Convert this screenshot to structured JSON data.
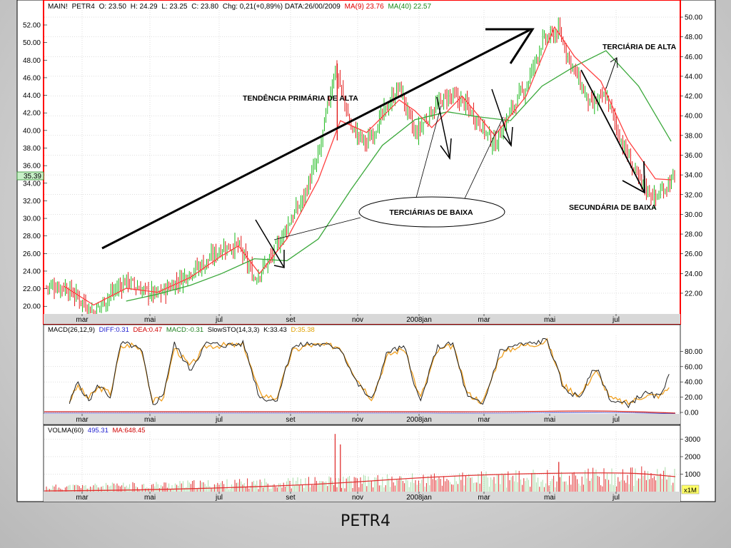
{
  "caption": "PETR4",
  "price_value_box": "35.39",
  "volume_unit_box": "x1M",
  "chart_data": [
    {
      "type": "candlestick",
      "panel": "main",
      "header": {
        "main": "MAIN!",
        "symbol": "PETR4",
        "open": "O: 23.50",
        "high": "H: 24.29",
        "low": "L: 23.25",
        "close": "C: 23.80",
        "change": "Chg: 0,21(+0,89%)",
        "date": "DATA:26/00/2009",
        "ma9": "MA(9) 23.76",
        "ma40": "MA(40) 22.57"
      },
      "x_ticks": [
        "mar",
        "mai",
        "jul",
        "set",
        "nov",
        "2008jan",
        "mar",
        "mai",
        "jul"
      ],
      "left_ticks": [
        "52.00",
        "50.00",
        "48.00",
        "46.00",
        "44.00",
        "42.00",
        "40.00",
        "38.00",
        "36.00",
        "34.00",
        "32.00",
        "30.00",
        "28.00",
        "26.00",
        "24.00",
        "22.00",
        "20.00"
      ],
      "right_ticks": [
        "50.00",
        "48.00",
        "46.00",
        "44.00",
        "42.00",
        "40.00",
        "38.00",
        "36.00",
        "34.00",
        "32.00",
        "30.00",
        "28.00",
        "26.00",
        "24.00",
        "22.00"
      ],
      "annotations": {
        "primary_trend": "TENDÊNCIA PRIMÁRIA DE ALTA",
        "tertiary_down": "TERCIÁRIAS DE BAIXA",
        "tertiary_up": "TERCIÁRIA DE ALTA",
        "secondary_down": "SECUNDÁRIA DE BAIXA"
      },
      "colors": {
        "up": "#00b000",
        "down": "#e00000",
        "ma9": "#ff4040",
        "ma40": "#3aa83a",
        "frame": "#ff0000"
      },
      "close_path": [
        [
          "2007-02-20",
          22.7
        ],
        [
          "2007-03-05",
          21.6
        ],
        [
          "2007-03-20",
          20.1
        ],
        [
          "2007-04-05",
          21.9
        ],
        [
          "2007-04-20",
          23.3
        ],
        [
          "2007-05-05",
          22.3
        ],
        [
          "2007-05-20",
          21.8
        ],
        [
          "2007-06-05",
          23.0
        ],
        [
          "2007-06-20",
          24.2
        ],
        [
          "2007-07-05",
          25.1
        ],
        [
          "2007-07-20",
          26.6
        ],
        [
          "2007-08-05",
          26.8
        ],
        [
          "2007-08-20",
          23.5
        ],
        [
          "2007-09-05",
          25.6
        ],
        [
          "2007-09-20",
          28.8
        ],
        [
          "2007-10-05",
          31.5
        ],
        [
          "2007-10-20",
          35.8
        ],
        [
          "2007-11-05",
          45.0
        ],
        [
          "2007-11-20",
          38.8
        ],
        [
          "2007-12-05",
          37.2
        ],
        [
          "2007-12-20",
          40.0
        ],
        [
          "2008-01-05",
          43.0
        ],
        [
          "2008-01-20",
          38.0
        ],
        [
          "2008-02-05",
          40.5
        ],
        [
          "2008-02-20",
          42.0
        ],
        [
          "2008-03-05",
          41.5
        ],
        [
          "2008-03-20",
          39.5
        ],
        [
          "2008-04-05",
          37.0
        ],
        [
          "2008-04-20",
          40.5
        ],
        [
          "2008-05-05",
          43.0
        ],
        [
          "2008-05-20",
          47.5
        ],
        [
          "2008-06-05",
          48.5
        ],
        [
          "2008-06-20",
          44.5
        ],
        [
          "2008-07-05",
          41.0
        ],
        [
          "2008-07-20",
          42.0
        ],
        [
          "2008-08-05",
          37.0
        ],
        [
          "2008-08-20",
          33.5
        ],
        [
          "2008-09-05",
          31.6
        ],
        [
          "2008-09-20",
          33.5
        ]
      ],
      "ma9_path": [
        [
          "2007-02-20",
          22.7
        ],
        [
          "2007-03-20",
          20.8
        ],
        [
          "2007-04-20",
          22.5
        ],
        [
          "2007-05-20",
          22.1
        ],
        [
          "2007-06-20",
          23.6
        ],
        [
          "2007-07-20",
          25.8
        ],
        [
          "2007-08-05",
          26.8
        ],
        [
          "2007-08-25",
          24.0
        ],
        [
          "2007-09-20",
          27.5
        ],
        [
          "2007-10-20",
          33.5
        ],
        [
          "2007-11-10",
          39.5
        ],
        [
          "2007-12-05",
          38.3
        ],
        [
          "2008-01-05",
          41.6
        ],
        [
          "2008-01-20",
          40.5
        ],
        [
          "2008-02-05",
          38.8
        ],
        [
          "2008-03-05",
          42.0
        ],
        [
          "2008-04-05",
          38.0
        ],
        [
          "2008-05-05",
          42.0
        ],
        [
          "2008-06-01",
          49.0
        ],
        [
          "2008-06-20",
          46.0
        ],
        [
          "2008-07-15",
          43.5
        ],
        [
          "2008-08-10",
          37.5
        ],
        [
          "2008-09-05",
          33.6
        ],
        [
          "2008-09-20",
          33.5
        ]
      ],
      "ma40_path": [
        [
          "2007-04-20",
          21.2
        ],
        [
          "2007-05-20",
          21.9
        ],
        [
          "2007-06-20",
          22.8
        ],
        [
          "2007-07-20",
          24.0
        ],
        [
          "2007-08-20",
          25.5
        ],
        [
          "2007-09-20",
          25.3
        ],
        [
          "2007-10-20",
          27.5
        ],
        [
          "2007-11-20",
          32.5
        ],
        [
          "2007-12-20",
          37.0
        ],
        [
          "2008-01-20",
          39.6
        ],
        [
          "2008-02-20",
          40.4
        ],
        [
          "2008-03-20",
          39.9
        ],
        [
          "2008-04-20",
          39.5
        ],
        [
          "2008-05-20",
          43.0
        ],
        [
          "2008-06-20",
          45.0
        ],
        [
          "2008-07-20",
          46.6
        ],
        [
          "2008-08-20",
          43.0
        ],
        [
          "2008-09-20",
          37.4
        ]
      ]
    },
    {
      "type": "line",
      "panel": "indicators",
      "header": {
        "macd": "MACD(26,12,9)",
        "diff": "DIFF:0.31",
        "dea": "DEA:0.47",
        "macd_val": "MACD:-0.31",
        "slowsto": "SlowSTO(14,3,3)",
        "k": "K:33.43",
        "d": "D:35.38"
      },
      "y_ticks": [
        "80.00",
        "60.00",
        "40.00",
        "20.00",
        "0.00"
      ],
      "ylim": [
        0,
        100
      ],
      "slowsto_k": [
        [
          "2007-02-25",
          12
        ],
        [
          "2007-03-05",
          40
        ],
        [
          "2007-03-15",
          15
        ],
        [
          "2007-03-25",
          36
        ],
        [
          "2007-04-05",
          20
        ],
        [
          "2007-04-15",
          90
        ],
        [
          "2007-04-25",
          88
        ],
        [
          "2007-05-05",
          80
        ],
        [
          "2007-05-15",
          10
        ],
        [
          "2007-05-25",
          22
        ],
        [
          "2007-06-05",
          90
        ],
        [
          "2007-06-20",
          55
        ],
        [
          "2007-07-05",
          90
        ],
        [
          "2007-07-25",
          88
        ],
        [
          "2007-08-10",
          90
        ],
        [
          "2007-08-25",
          20
        ],
        [
          "2007-09-10",
          15
        ],
        [
          "2007-09-25",
          85
        ],
        [
          "2007-10-10",
          90
        ],
        [
          "2007-10-25",
          88
        ],
        [
          "2007-11-10",
          85
        ],
        [
          "2007-11-25",
          40
        ],
        [
          "2007-12-10",
          15
        ],
        [
          "2007-12-25",
          80
        ],
        [
          "2008-01-10",
          85
        ],
        [
          "2008-01-25",
          12
        ],
        [
          "2008-02-10",
          85
        ],
        [
          "2008-02-25",
          90
        ],
        [
          "2008-03-10",
          20
        ],
        [
          "2008-03-25",
          10
        ],
        [
          "2008-04-10",
          80
        ],
        [
          "2008-04-25",
          88
        ],
        [
          "2008-05-10",
          90
        ],
        [
          "2008-05-25",
          95
        ],
        [
          "2008-06-10",
          30
        ],
        [
          "2008-06-25",
          20
        ],
        [
          "2008-07-10",
          60
        ],
        [
          "2008-07-25",
          15
        ],
        [
          "2008-08-10",
          10
        ],
        [
          "2008-08-25",
          25
        ],
        [
          "2008-09-10",
          20
        ],
        [
          "2008-09-20",
          62
        ]
      ],
      "slowsto_d": [
        [
          "2007-02-25",
          15
        ],
        [
          "2007-03-05",
          35
        ],
        [
          "2007-03-15",
          18
        ],
        [
          "2007-03-25",
          33
        ],
        [
          "2007-04-05",
          25
        ],
        [
          "2007-04-15",
          85
        ],
        [
          "2007-04-25",
          89
        ],
        [
          "2007-05-05",
          82
        ],
        [
          "2007-05-15",
          15
        ],
        [
          "2007-05-25",
          18
        ],
        [
          "2007-06-05",
          85
        ],
        [
          "2007-06-20",
          60
        ],
        [
          "2007-07-05",
          87
        ],
        [
          "2007-07-25",
          88
        ],
        [
          "2007-08-10",
          88
        ],
        [
          "2007-08-25",
          25
        ],
        [
          "2007-09-10",
          18
        ],
        [
          "2007-09-25",
          80
        ],
        [
          "2007-10-10",
          88
        ],
        [
          "2007-10-25",
          88
        ],
        [
          "2007-11-10",
          86
        ],
        [
          "2007-11-25",
          45
        ],
        [
          "2007-12-10",
          18
        ],
        [
          "2007-12-25",
          75
        ],
        [
          "2008-01-10",
          84
        ],
        [
          "2008-01-25",
          18
        ],
        [
          "2008-02-10",
          80
        ],
        [
          "2008-02-25",
          88
        ],
        [
          "2008-03-10",
          25
        ],
        [
          "2008-03-25",
          13
        ],
        [
          "2008-04-10",
          75
        ],
        [
          "2008-04-25",
          86
        ],
        [
          "2008-05-10",
          89
        ],
        [
          "2008-05-25",
          93
        ],
        [
          "2008-06-10",
          35
        ],
        [
          "2008-06-25",
          22
        ],
        [
          "2008-07-10",
          55
        ],
        [
          "2008-07-25",
          18
        ],
        [
          "2008-08-10",
          12
        ],
        [
          "2008-08-25",
          22
        ],
        [
          "2008-09-10",
          22
        ],
        [
          "2008-09-20",
          35
        ]
      ]
    },
    {
      "type": "bar",
      "panel": "volume",
      "header": {
        "label": "VOLMA(60)",
        "value": "495.31",
        "ma": "MA:648.45"
      },
      "y_ticks": [
        "3000",
        "2000",
        "1000"
      ],
      "spikes": [
        [
          "2007-11-05",
          3300
        ],
        [
          "2007-11-10",
          2700
        ],
        [
          "2008-06-05",
          1700
        ]
      ]
    }
  ]
}
